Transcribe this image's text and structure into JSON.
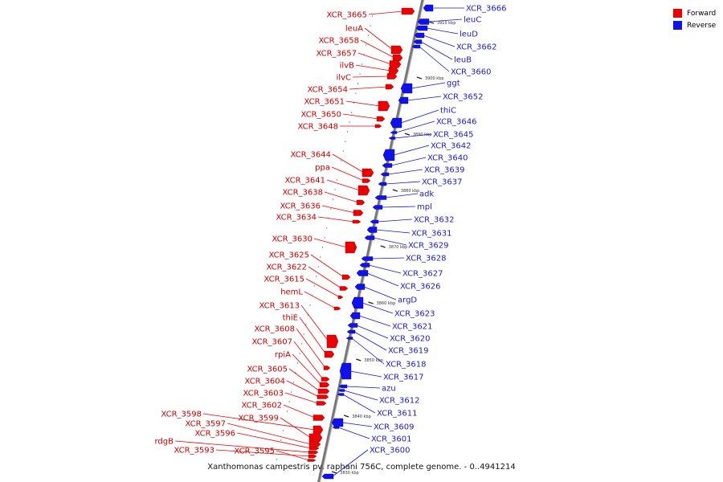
{
  "caption": "Xanthomonas campestris pv. raphani 756C, complete genome. - 0..4941214",
  "legend": [
    {
      "label": "Forward",
      "color": "#ee0000"
    },
    {
      "label": "Reverse",
      "color": "#1111ee"
    }
  ],
  "colors": {
    "forward": "#ee0000",
    "reverse": "#1111ee",
    "axis": "#777777"
  },
  "kbp_ticks": [
    "3910 kbp",
    "3900 kbp",
    "3890 kbp",
    "3880 kbp",
    "3870 kbp",
    "3860 kbp",
    "3850 kbp",
    "3840 kbp",
    "3830 kbp"
  ],
  "forward_genes": [
    "XCR_3665",
    "leuA",
    "XCR_3658",
    "XCR_3657",
    "ilvB",
    "ilvC",
    "XCR_3654",
    "XCR_3651",
    "XCR_3650",
    "XCR_3648",
    "XCR_3644",
    "ppa",
    "XCR_3641",
    "XCR_3638",
    "XCR_3636",
    "XCR_3634",
    "XCR_3630",
    "XCR_3625",
    "XCR_3622",
    "XCR_3615",
    "hemL",
    "XCR_3613",
    "thiE",
    "XCR_3608",
    "XCR_3607",
    "rpiA",
    "XCR_3605",
    "XCR_3604",
    "XCR_3603",
    "XCR_3602",
    "XCR_3598",
    "XCR_3599",
    "XCR_3597",
    "XCR_3596",
    "rdgB",
    "XCR_3593",
    "XCR_3595"
  ],
  "reverse_genes": [
    "XCR_3666",
    "leuC",
    "leuD",
    "XCR_3662",
    "leuB",
    "XCR_3660",
    "ggt",
    "XCR_3652",
    "thiC",
    "XCR_3646",
    "XCR_3645",
    "XCR_3642",
    "XCR_3640",
    "XCR_3639",
    "XCR_3637",
    "adk",
    "mpl",
    "XCR_3632",
    "XCR_3631",
    "XCR_3629",
    "XCR_3628",
    "XCR_3627",
    "XCR_3626",
    "argD",
    "XCR_3623",
    "XCR_3621",
    "XCR_3620",
    "XCR_3619",
    "XCR_3618",
    "XCR_3617",
    "azu",
    "XCR_3612",
    "XCR_3611",
    "XCR_3609",
    "XCR_3601",
    "XCR_3600"
  ]
}
